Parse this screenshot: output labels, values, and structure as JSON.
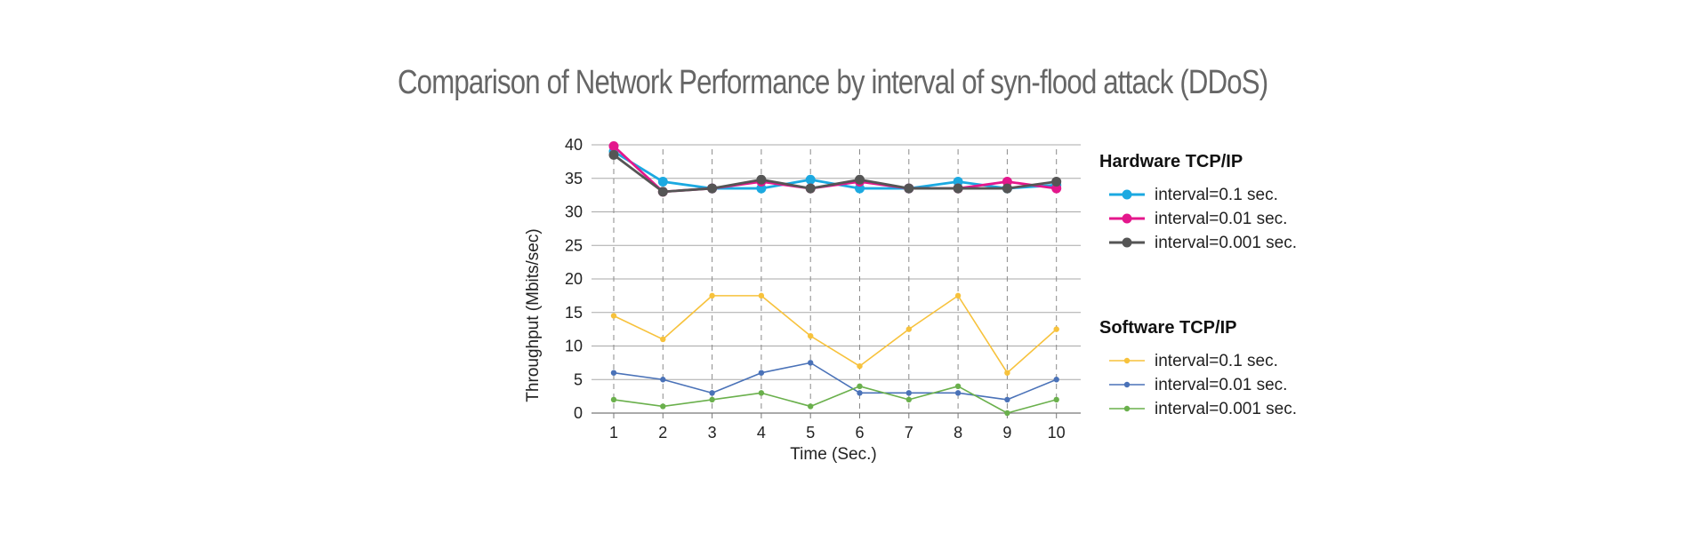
{
  "chart_data": {
    "type": "line",
    "title": "Comparison of Network Performance by interval of syn-flood attack (DDoS)",
    "xlabel": "Time (Sec.)",
    "ylabel": "Throughput (Mbits/sec)",
    "x": [
      1,
      2,
      3,
      4,
      5,
      6,
      7,
      8,
      9,
      10
    ],
    "ylim": [
      0,
      40
    ],
    "yticks": [
      0,
      5,
      10,
      15,
      20,
      25,
      30,
      35,
      40
    ],
    "grid": "horizontal",
    "vertical_guides": "dashed",
    "legend_position": "right",
    "groups": [
      {
        "title": "Hardware TCP/IP",
        "style": "thick",
        "series": [
          {
            "name": "interval=0.1 sec.",
            "color": "#1ba9e1",
            "values": [
              39,
              34.5,
              33.5,
              33.5,
              34.8,
              33.5,
              33.5,
              34.5,
              33.5,
              34
            ]
          },
          {
            "name": "interval=0.01 sec.",
            "color": "#e4178c",
            "values": [
              39.8,
              33,
              33.5,
              34.5,
              33.5,
              34.5,
              33.5,
              33.5,
              34.5,
              33.5
            ]
          },
          {
            "name": "interval=0.001 sec.",
            "color": "#555555",
            "values": [
              38.5,
              33,
              33.5,
              34.8,
              33.5,
              34.8,
              33.5,
              33.5,
              33.5,
              34.5
            ]
          }
        ]
      },
      {
        "title": "Software TCP/IP",
        "style": "thin",
        "series": [
          {
            "name": "interval=0.1 sec.",
            "color": "#f7c23c",
            "values": [
              14.5,
              11,
              17.5,
              17.5,
              11.5,
              7,
              12.5,
              17.5,
              6,
              12.5
            ]
          },
          {
            "name": "interval=0.01 sec.",
            "color": "#4a72b8",
            "values": [
              6,
              5,
              3,
              6,
              7.5,
              3,
              3,
              3,
              2,
              5
            ]
          },
          {
            "name": "interval=0.001 sec.",
            "color": "#6ab04c",
            "values": [
              2,
              1,
              2,
              3,
              1,
              4,
              2,
              4,
              0,
              2
            ]
          }
        ]
      }
    ]
  }
}
